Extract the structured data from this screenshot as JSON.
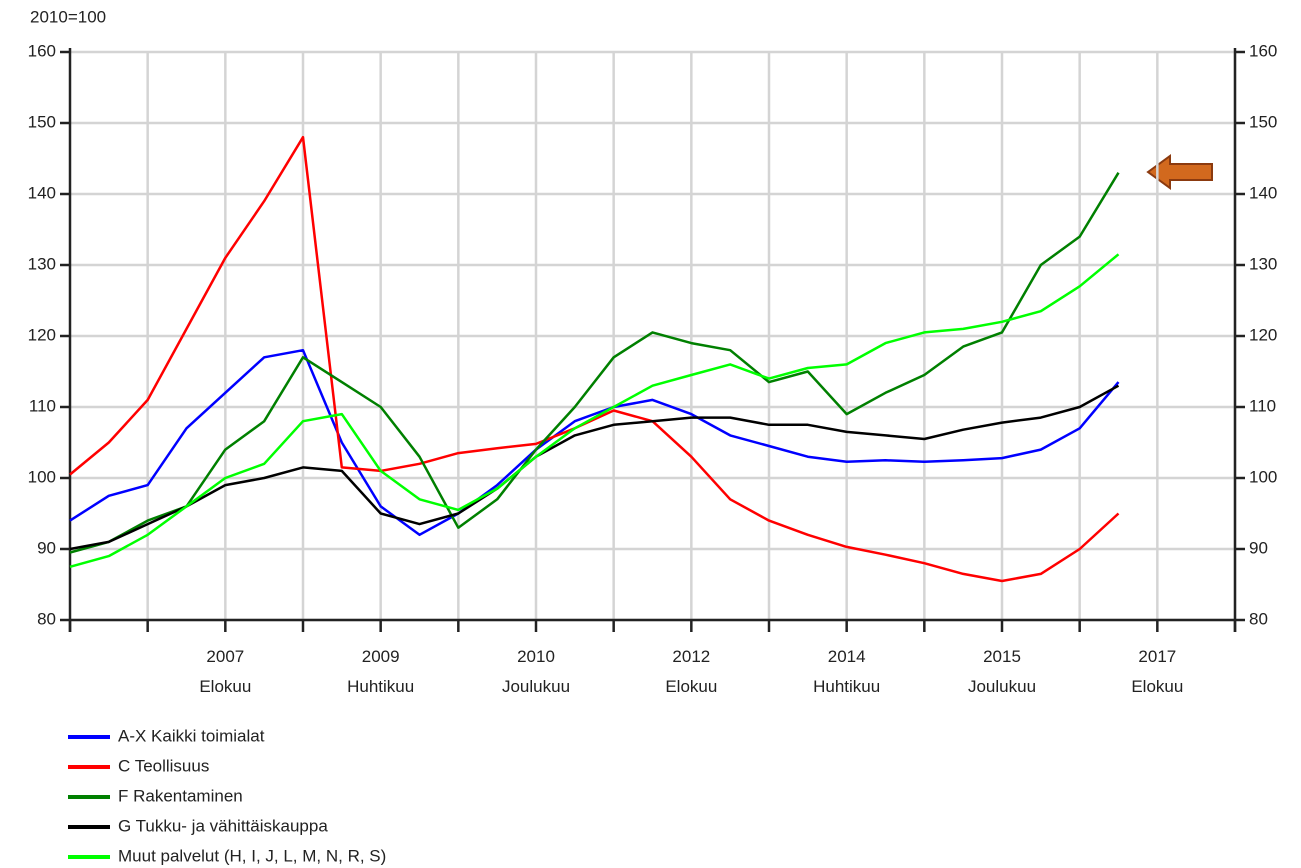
{
  "chart_data": {
    "type": "line",
    "y_label": "2010=100",
    "categories": [
      null,
      null,
      null,
      null,
      "2007\nElokuu",
      null,
      null,
      null,
      "2009\nHuhtikuu",
      null,
      null,
      null,
      "2010\nJoulukuu",
      null,
      null,
      null,
      "2012\nElokuu",
      null,
      null,
      null,
      "2014\nHuhtikuu",
      null,
      null,
      null,
      "2015\nJoulukuu",
      null,
      null,
      null,
      "2017\nElokuu"
    ],
    "series": [
      {
        "name": "A-X Kaikki toimialat",
        "color": "#0000ff",
        "values": [
          94,
          97.5,
          99,
          107,
          112,
          117,
          118,
          105,
          96,
          92,
          95,
          99,
          104,
          108,
          110,
          111,
          109,
          106,
          104.5,
          103,
          102.3,
          102.5,
          102.3,
          102.5,
          102.8,
          104,
          107,
          113.5,
          null
        ]
      },
      {
        "name": "C Teollisuus",
        "color": "#ff0000",
        "values": [
          100.5,
          105,
          111,
          121,
          131,
          139,
          148,
          101.5,
          101,
          102,
          103.5,
          104.2,
          104.8,
          107,
          109.5,
          108,
          103,
          97,
          94,
          92,
          90.3,
          89.2,
          88,
          86.5,
          85.5,
          86.5,
          90,
          95,
          null
        ]
      },
      {
        "name": "F Rakentaminen",
        "color": "#008000",
        "values": [
          89.5,
          91,
          94,
          96,
          104,
          108,
          117,
          113.5,
          110,
          103,
          93,
          97,
          104,
          110,
          117,
          120.5,
          119,
          118,
          113.5,
          115,
          109,
          112,
          114.5,
          118.5,
          120.5,
          130,
          134,
          143,
          null
        ]
      },
      {
        "name": "G Tukku- ja vähittäiskauppa",
        "color": "#000000",
        "values": [
          90,
          91,
          93.5,
          96,
          99,
          100,
          101.5,
          101,
          95,
          93.5,
          95,
          98.5,
          103,
          106,
          107.5,
          108,
          108.5,
          108.5,
          107.5,
          107.5,
          106.5,
          106,
          105.5,
          106.8,
          107.8,
          108.5,
          110,
          113,
          null
        ]
      },
      {
        "name": "Muut palvelut (H, I, J, L, M, N, R, S)",
        "color": "#00ff00",
        "values": [
          87.5,
          89,
          92,
          96,
          100,
          102,
          108,
          109,
          101,
          97,
          95.5,
          98.5,
          103,
          107,
          110,
          113,
          114.5,
          116,
          114,
          115.5,
          116,
          119,
          120.5,
          121,
          122,
          123.5,
          127,
          131.5,
          null
        ]
      }
    ],
    "ylim": [
      80,
      160
    ],
    "yticks": [
      80,
      90,
      100,
      110,
      120,
      130,
      140,
      150,
      160
    ],
    "grid": true
  }
}
